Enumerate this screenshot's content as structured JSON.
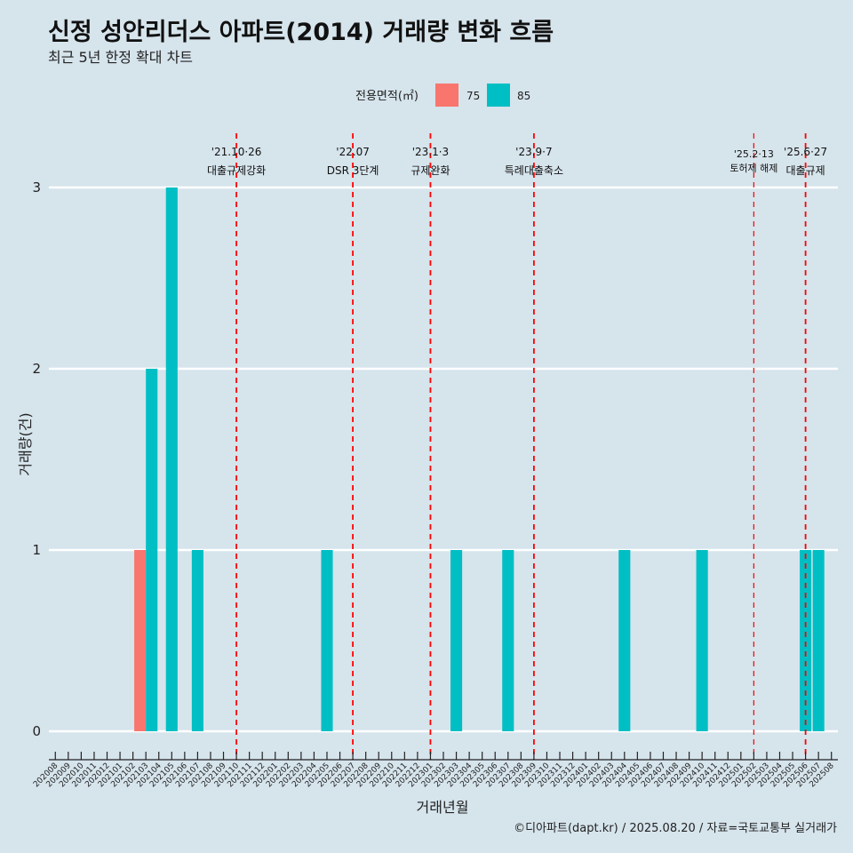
{
  "title": "신정 성안리더스 아파트(2014) 거래량 변화 흐름",
  "subtitle": "최근 5년 한정 확대 차트",
  "caption": "©디아파트(dapt.kr) / 2025.08.20 / 자료=국토교통부 실거래가",
  "colors": {
    "75": "#f8766d",
    "85": "#00bfc4",
    "event_line": "#ff0000",
    "grid": "#ffffff",
    "background": "#d6e4ec"
  },
  "chart_data": {
    "type": "bar",
    "xlabel": "거래년월",
    "ylabel": "거래량(건)",
    "ylim": [
      0,
      3
    ],
    "yticks": [
      0,
      1,
      2,
      3
    ],
    "legend": {
      "title": "전용면적(㎡)",
      "position": "top",
      "entries": [
        "75",
        "85"
      ]
    },
    "categories": [
      "202008",
      "202009",
      "202010",
      "202011",
      "202012",
      "202101",
      "202102",
      "202103",
      "202104",
      "202105",
      "202106",
      "202107",
      "202108",
      "202109",
      "202110",
      "202111",
      "202112",
      "202201",
      "202202",
      "202203",
      "202204",
      "202205",
      "202206",
      "202207",
      "202208",
      "202209",
      "202210",
      "202211",
      "202212",
      "202301",
      "202302",
      "202303",
      "202304",
      "202305",
      "202306",
      "202307",
      "202308",
      "202309",
      "202310",
      "202311",
      "202312",
      "202401",
      "202402",
      "202403",
      "202404",
      "202405",
      "202406",
      "202407",
      "202408",
      "202409",
      "202410",
      "202411",
      "202412",
      "202501",
      "202502",
      "202503",
      "202504",
      "202505",
      "202506",
      "202507",
      "202508"
    ],
    "series": [
      {
        "name": "75",
        "points": [
          {
            "x": "202103",
            "y": 1
          }
        ]
      },
      {
        "name": "85",
        "points": [
          {
            "x": "202103",
            "y": 2
          },
          {
            "x": "202105",
            "y": 3
          },
          {
            "x": "202107",
            "y": 1
          },
          {
            "x": "202205",
            "y": 1
          },
          {
            "x": "202303",
            "y": 1
          },
          {
            "x": "202307",
            "y": 1
          },
          {
            "x": "202404",
            "y": 1
          },
          {
            "x": "202410",
            "y": 1
          },
          {
            "x": "202506",
            "y": 1
          },
          {
            "x": "202507",
            "y": 1
          }
        ]
      }
    ],
    "events": [
      {
        "date": "'21.10·26",
        "label": "대출규제강화",
        "x": "202110",
        "style": "normal"
      },
      {
        "date": "'22.07",
        "label": "DSR 3단계",
        "x": "202207",
        "style": "normal"
      },
      {
        "date": "'23.1·3",
        "label": "규제완화",
        "x": "202301",
        "style": "normal"
      },
      {
        "date": "'23.9·7",
        "label": "특례대출축소",
        "x": "202309",
        "style": "normal"
      },
      {
        "date": "'25.2·13",
        "label": "토허제 해제",
        "x": "202502",
        "style": "small"
      },
      {
        "date": "'25.6·27",
        "label": "대출규제",
        "x": "202506",
        "style": "normal"
      }
    ]
  }
}
